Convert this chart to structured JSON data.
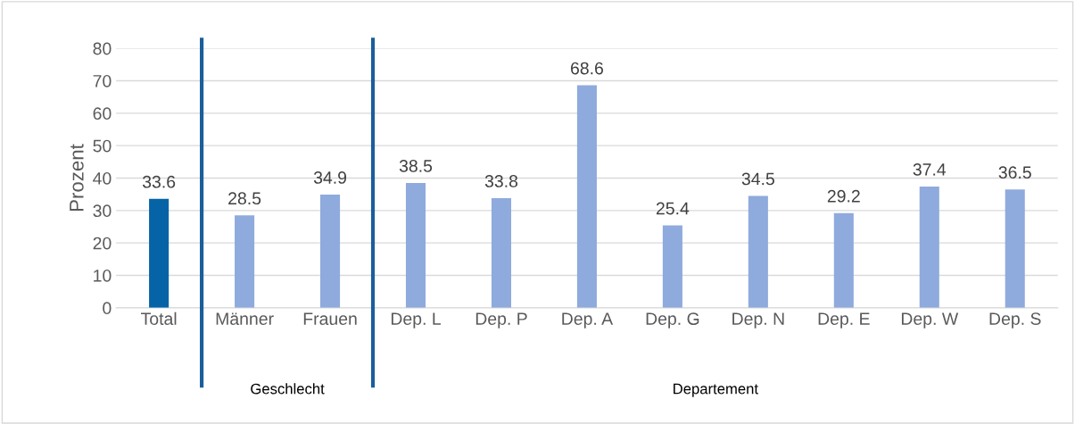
{
  "chart_data": {
    "type": "bar",
    "ylabel": "Prozent",
    "categories": [
      "Total",
      "Männer",
      "Frauen",
      "Dep. L",
      "Dep. P",
      "Dep. A",
      "Dep. G",
      "Dep. N",
      "Dep. E",
      "Dep. W",
      "Dep. S"
    ],
    "values": [
      33.6,
      28.5,
      34.9,
      38.5,
      33.8,
      68.6,
      25.4,
      34.5,
      29.2,
      37.4,
      36.5
    ],
    "colors": [
      "#0563a6",
      "#8faadc",
      "#8faadc",
      "#8faadc",
      "#8faadc",
      "#8faadc",
      "#8faadc",
      "#8faadc",
      "#8faadc",
      "#8faadc",
      "#8faadc"
    ],
    "ylim": [
      0,
      80
    ],
    "yticks": [
      0,
      10,
      20,
      30,
      40,
      50,
      60,
      70,
      80
    ],
    "grid": "y",
    "data_labels": true,
    "legend": false,
    "annotations": [
      "Geschlecht",
      "Departement"
    ]
  }
}
